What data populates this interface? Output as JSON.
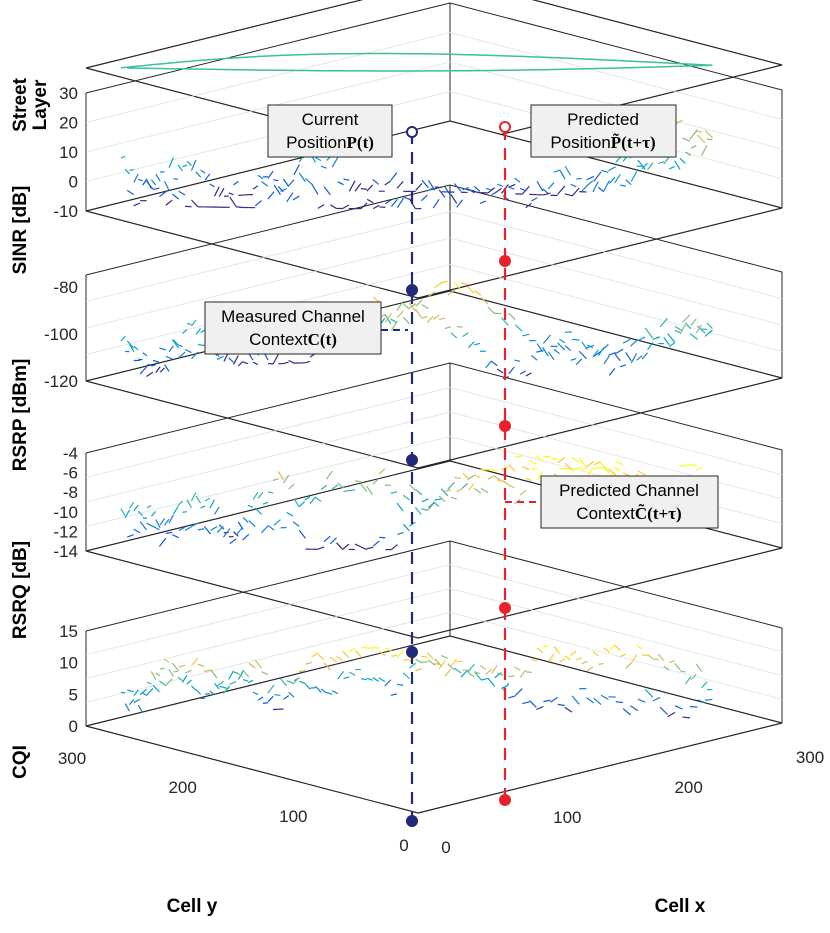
{
  "chart_data": {
    "type": "line",
    "layers": [
      {
        "id": "street",
        "ylabel": "Street\nLayer",
        "ticks": []
      },
      {
        "id": "sinr",
        "ylabel": "SINR [dB]",
        "ticks": [
          30,
          20,
          10,
          0,
          -10
        ],
        "range": [
          -10,
          30
        ]
      },
      {
        "id": "rsrp",
        "ylabel": "RSRP [dBm]",
        "ticks": [
          -80,
          -100,
          -120
        ],
        "range": [
          -120,
          -75
        ]
      },
      {
        "id": "rsrq",
        "ylabel": "RSRQ [dB]",
        "ticks": [
          -4,
          -6,
          -8,
          -10,
          -12,
          -14
        ],
        "range": [
          -14,
          -4
        ]
      },
      {
        "id": "cqi",
        "ylabel": "CQI",
        "ticks": [
          15,
          10,
          5,
          0
        ],
        "range": [
          0,
          15
        ]
      }
    ],
    "xaxis": {
      "label": "Cell x",
      "ticks": [
        0,
        100,
        200,
        300
      ]
    },
    "yaxis": {
      "label": "Cell y",
      "ticks": [
        0,
        100,
        200,
        300
      ]
    },
    "annotations": {
      "current": {
        "line1": "Current",
        "line2": "Position",
        "math": "P(t)"
      },
      "predicted": {
        "line1": "Predicted",
        "line2": "Position",
        "math": "P̃(t+τ)"
      },
      "measured": {
        "line1": "Measured Channel",
        "line2": "Context",
        "math": "C(t)"
      },
      "pred_channel": {
        "line1": "Predicted Channel",
        "line2": "Context",
        "math": "C̃(t+τ)"
      }
    },
    "markers": {
      "current_color": "#1f2a7a",
      "predicted_color": "#e8222a"
    },
    "colormap": "parula"
  }
}
